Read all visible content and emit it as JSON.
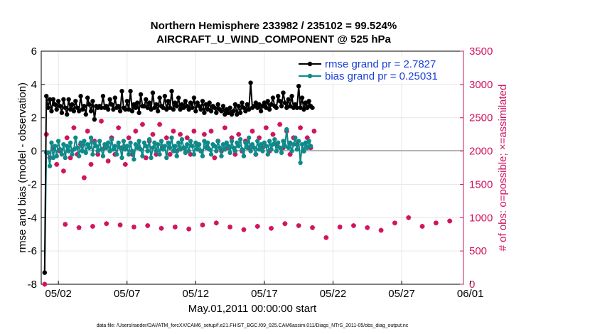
{
  "chart_data": {
    "type": "line",
    "title": "Northern Hemisphere 233982 / 235102 = 99.524%",
    "subtitle": "AIRCRAFT_U_WIND_COMPONENT @ 525 hPa",
    "xlabel": "May.01,2011 00:00:00 start",
    "ylabel": "rmse and bias (model - observation)",
    "ylabel_right": "# of obs: o=possible; ×=assimilated",
    "footer": "data file: /Users/raeder/DAI/ATM_forcXX/CAM6_setup/f.e21.FHIST_BGC.f09_025.CAM6assim.011/Diags_NTrS_2011-05/obs_diag_output.nc",
    "x_range": [
      0.75,
      31.5
    ],
    "ylim": [
      -8,
      6
    ],
    "ylim_right": [
      0,
      3500
    ],
    "x_tick_positions": [
      2,
      7,
      12,
      17,
      22,
      27,
      32
    ],
    "x_tick_labels": [
      "05/02",
      "05/07",
      "05/12",
      "05/17",
      "05/22",
      "05/27",
      "06/01"
    ],
    "y_ticks": [
      "-8",
      "-6",
      "-4",
      "-2",
      "0",
      "2",
      "4",
      "6"
    ],
    "y_ticks_right": [
      "0",
      "500",
      "1000",
      "1500",
      "2000",
      "2500",
      "3000",
      "3500"
    ],
    "grid": true,
    "legend_position": "top-right",
    "x_start": 1.0,
    "x_step": 0.125,
    "series": [
      {
        "name": "rmse grand pr = 2.7827",
        "legend_label": "rmse grand pr = 2.7827",
        "color": "#000000",
        "axis": "left",
        "values": [
          -7.3,
          3.3,
          2.6,
          3.1,
          2.4,
          3.1,
          2.8,
          2.5,
          3.0,
          2.7,
          2.3,
          3.1,
          2.6,
          2.2,
          3.1,
          2.5,
          2.8,
          2.4,
          3.0,
          2.6,
          2.4,
          3.3,
          2.5,
          2.7,
          2.2,
          3.2,
          2.8,
          2.4,
          3.0,
          1.9,
          2.7,
          2.6,
          2.7,
          2.6,
          3.3,
          2.6,
          2.7,
          2.5,
          3.1,
          2.8,
          2.5,
          3.2,
          2.6,
          2.7,
          2.4,
          3.6,
          2.6,
          2.5,
          3.0,
          2.5,
          3.6,
          2.4,
          2.8,
          2.6,
          2.9,
          2.3,
          3.4,
          2.7,
          2.7,
          3.1,
          2.6,
          2.9,
          2.5,
          3.5,
          2.6,
          2.8,
          2.4,
          3.2,
          2.7,
          2.6,
          3.3,
          2.5,
          3.0,
          2.6,
          3.6,
          2.5,
          2.9,
          2.7,
          3.2,
          2.5,
          2.8,
          2.6,
          3.0,
          2.7,
          2.5,
          2.9,
          2.6,
          3.2,
          2.4,
          2.9,
          2.7,
          2.5,
          3.0,
          2.3,
          2.8,
          2.5,
          2.9,
          2.4,
          2.7,
          2.6,
          2.3,
          2.8,
          2.5,
          2.4,
          2.7,
          2.2,
          2.5,
          2.3,
          2.6,
          2.2,
          2.4,
          2.8,
          2.2,
          2.7,
          2.3,
          2.9,
          2.6,
          2.4,
          2.8,
          2.5,
          4.1,
          2.6,
          2.7,
          2.9,
          2.6,
          2.8,
          2.4,
          2.7,
          2.9,
          2.6,
          3.0,
          2.5,
          2.8,
          3.2,
          2.7,
          2.6,
          3.3,
          3.0,
          2.7,
          3.5,
          2.9,
          2.6,
          3.1,
          2.7,
          3.3,
          2.6,
          2.8,
          2.6,
          3.9,
          2.6,
          3.2,
          2.5,
          2.9,
          2.6,
          3.0,
          2.7,
          2.6
        ],
        "first_point_value": -7.3
      },
      {
        "name": "bias grand pr = 0.25031",
        "legend_label": "bias grand pr = 0.25031",
        "color": "#0f8a8a",
        "axis": "left",
        "values": [
          -7.3,
          -0.1,
          -0.1,
          -0.9,
          0.5,
          -0.4,
          0.3,
          -0.3,
          0.6,
          0.1,
          -0.2,
          0.4,
          -0.4,
          0.3,
          0.0,
          0.5,
          -0.2,
          0.1,
          0.8,
          0.2,
          -0.3,
          0.5,
          0.0,
          0.6,
          -0.1,
          0.4,
          0.2,
          0.8,
          -0.2,
          0.5,
          0.3,
          0.0,
          0.6,
          0.1,
          -0.3,
          0.4,
          0.2,
          0.5,
          0.0,
          0.7,
          0.1,
          0.3,
          -0.2,
          0.5,
          0.2,
          -0.4,
          0.6,
          0.1,
          0.3,
          -0.2,
          0.5,
          0.0,
          -0.5,
          0.4,
          0.2,
          0.6,
          0.1,
          -0.3,
          0.5,
          0.3,
          0.0,
          0.7,
          -0.4,
          0.2,
          0.5,
          0.0,
          0.4,
          -0.2,
          0.6,
          0.1,
          0.3,
          -0.4,
          0.5,
          0.2,
          0.8,
          0.0,
          0.3,
          -0.3,
          0.5,
          0.1,
          0.7,
          0.2,
          -0.1,
          0.4,
          0.0,
          0.6,
          0.3,
          -0.2,
          0.5,
          0.1,
          0.4,
          0.0,
          -0.3,
          0.6,
          0.2,
          0.5,
          0.1,
          -0.2,
          0.4,
          0.3,
          0.0,
          0.6,
          0.2,
          -0.3,
          0.4,
          0.1,
          0.5,
          0.3,
          -0.1,
          0.6,
          0.2,
          0.0,
          0.5,
          0.3,
          0.7,
          0.1,
          -0.3,
          0.5,
          0.2,
          0.8,
          0.0,
          0.4,
          0.2,
          -0.2,
          0.6,
          0.1,
          0.4,
          0.0,
          0.5,
          0.3,
          -0.2,
          0.6,
          0.1,
          0.4,
          0.7,
          0.0,
          0.5,
          0.2,
          -0.1,
          0.6,
          0.3,
          1.3,
          0.2,
          0.5,
          0.0,
          0.4,
          0.8,
          0.1,
          0.6,
          -0.7,
          0.4,
          0.0,
          0.5,
          0.2,
          0.6,
          0.3
        ],
        "first_point_value": -7.3
      },
      {
        "name": "possible",
        "color": "#d0155f",
        "axis": "right",
        "marker": "o",
        "values": [
          0,
          2250,
          2600,
          1900,
          2820,
          2050,
          2650,
          1800,
          2850,
          2000,
          2600,
          1700,
          2700,
          2200,
          2900,
          1900,
          2750,
          2350,
          2800,
          1950,
          2650,
          2100,
          2900,
          1600,
          2700,
          2300,
          2850,
          1800,
          2600,
          2150,
          2800,
          1950,
          2700,
          2450,
          2850,
          2050,
          2650,
          1850,
          2900,
          2200,
          2700,
          1950,
          2850,
          2350,
          2650,
          2050,
          2800,
          1800,
          2700,
          2200,
          2850,
          1950,
          2600,
          2300,
          2800,
          2050,
          2700,
          2400,
          2850,
          1900,
          2650,
          2150,
          2800,
          2250,
          2700,
          1950,
          2850,
          2400,
          2650,
          2050,
          2800,
          2200,
          2700,
          1950,
          2850,
          2300,
          2650,
          2000,
          2800,
          2250,
          2700,
          2050,
          2900,
          2200,
          2650,
          1950,
          2850,
          2300,
          2700,
          2100,
          2800,
          2000,
          2650,
          2250,
          2850,
          2050,
          2700,
          2300,
          2800,
          1900,
          2650,
          2150,
          2850,
          2000,
          2700,
          2350,
          2800,
          2050,
          2650,
          2200,
          2850,
          1950,
          2700,
          2250,
          2800,
          2000,
          2650,
          2150,
          2850,
          2050,
          2700,
          2300,
          2800,
          1950,
          2650,
          2200,
          2850,
          2050,
          2700,
          2350,
          2800,
          2000,
          2650,
          2250,
          2900,
          2100,
          2700,
          2400,
          2850,
          2050,
          2700,
          2300,
          2800,
          1950,
          2650,
          2200,
          2850,
          2100,
          2750,
          2350,
          2800,
          2000,
          2700,
          2200,
          2850,
          2050,
          2700,
          2300,
          2800
        ],
        "low_rows": [
          {
            "x": 2.5,
            "v": 900
          },
          {
            "x": 3.5,
            "v": 850
          },
          {
            "x": 4.5,
            "v": 870
          },
          {
            "x": 5.5,
            "v": 910
          },
          {
            "x": 6.5,
            "v": 890
          },
          {
            "x": 7.5,
            "v": 860
          },
          {
            "x": 8.5,
            "v": 880
          },
          {
            "x": 9.5,
            "v": 840
          },
          {
            "x": 10.5,
            "v": 860
          },
          {
            "x": 11.5,
            "v": 830
          },
          {
            "x": 12.5,
            "v": 890
          },
          {
            "x": 13.5,
            "v": 920
          },
          {
            "x": 14.5,
            "v": 860
          },
          {
            "x": 15.5,
            "v": 820
          },
          {
            "x": 16.5,
            "v": 870
          },
          {
            "x": 17.5,
            "v": 840
          },
          {
            "x": 18.5,
            "v": 910
          },
          {
            "x": 19.5,
            "v": 880
          },
          {
            "x": 20.5,
            "v": 850
          },
          {
            "x": 21.5,
            "v": 700
          },
          {
            "x": 22.5,
            "v": 860
          },
          {
            "x": 23.5,
            "v": 880
          },
          {
            "x": 24.5,
            "v": 850
          },
          {
            "x": 25.5,
            "v": 810
          },
          {
            "x": 26.5,
            "v": 920
          },
          {
            "x": 27.5,
            "v": 1000
          },
          {
            "x": 28.5,
            "v": 870
          },
          {
            "x": 29.5,
            "v": 920
          },
          {
            "x": 30.5,
            "v": 950
          }
        ]
      }
    ]
  }
}
